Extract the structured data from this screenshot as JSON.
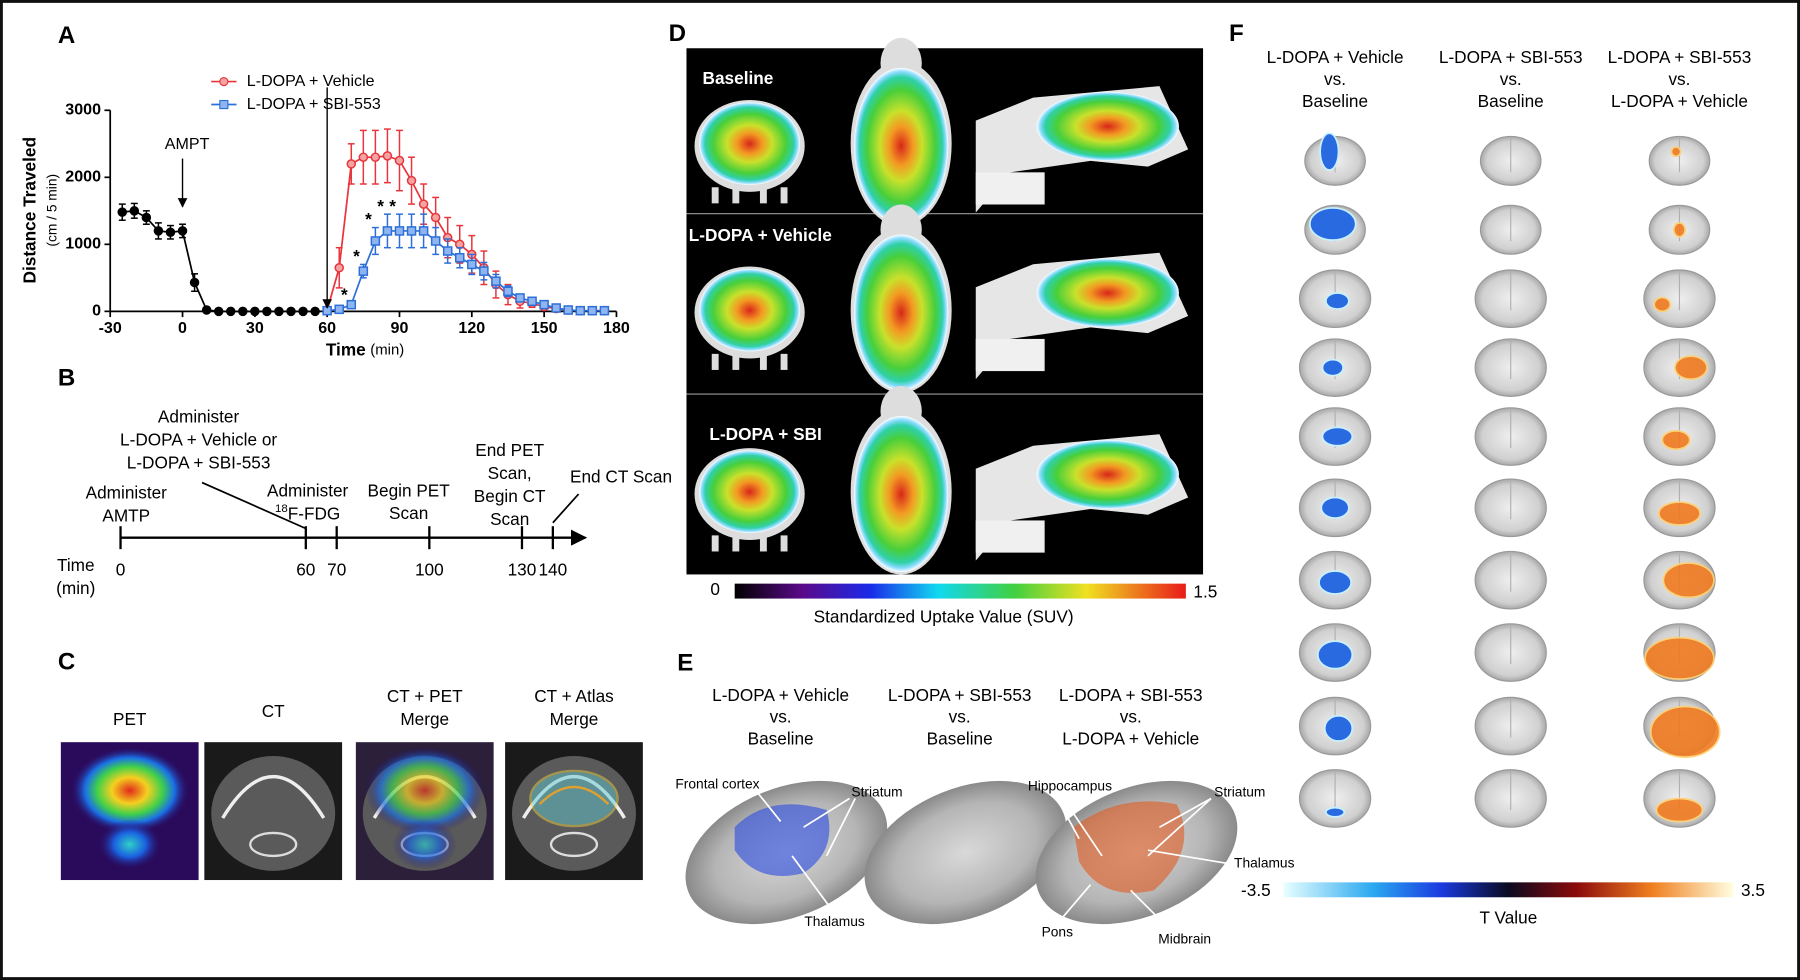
{
  "panel_labels": [
    "A",
    "B",
    "C",
    "D",
    "E",
    "F"
  ],
  "chart_data": {
    "type": "line",
    "y_label": "Distance Traveled",
    "y_label_unit": "(cm / 5 min)",
    "x_label": "Time",
    "x_label_unit": "(min)",
    "x": [
      -25,
      -20,
      -15,
      -10,
      -5,
      0,
      5,
      10,
      15,
      20,
      25,
      30,
      35,
      40,
      45,
      50,
      55,
      60,
      65,
      70,
      75,
      80,
      85,
      90,
      95,
      100,
      105,
      110,
      115,
      120,
      125,
      130,
      135,
      140,
      145,
      150,
      155,
      160,
      165,
      170,
      175
    ],
    "xlim": [
      -30,
      180
    ],
    "xticks": [
      -30,
      0,
      30,
      60,
      90,
      120,
      150,
      180
    ],
    "ylim": [
      0,
      3000
    ],
    "yticks": [
      0,
      1000,
      2000,
      3000
    ],
    "series": [
      {
        "color": "#000000",
        "marker": "circle",
        "values": [
          1480,
          1500,
          1400,
          1200,
          1180,
          1200,
          430,
          20,
          0,
          0,
          0,
          0,
          0,
          0,
          0,
          0,
          0,
          null,
          null,
          null,
          null,
          null,
          null,
          null,
          null,
          null,
          null,
          null,
          null,
          null,
          null,
          null,
          null,
          null,
          null,
          null,
          null,
          null,
          null,
          null,
          null
        ],
        "errors": [
          120,
          110,
          100,
          120,
          100,
          100,
          130,
          0,
          0,
          0,
          0,
          0,
          0,
          0,
          0,
          0,
          0,
          null,
          null,
          null,
          null,
          null,
          null,
          null,
          null,
          null,
          null,
          null,
          null,
          null,
          null,
          null,
          null,
          null,
          null,
          null,
          null,
          null,
          null,
          null,
          null
        ]
      },
      {
        "name": "L-DOPA + Vehicle",
        "color": "#e8353b",
        "marker": "circle",
        "values": [
          null,
          null,
          null,
          null,
          null,
          null,
          null,
          null,
          null,
          null,
          null,
          null,
          null,
          null,
          null,
          null,
          null,
          20,
          650,
          2200,
          2300,
          2300,
          2320,
          2250,
          1950,
          1600,
          1400,
          1100,
          1000,
          850,
          650,
          400,
          250,
          150,
          120,
          70,
          40,
          20,
          10,
          10,
          10
        ],
        "errors": [
          null,
          null,
          null,
          null,
          null,
          null,
          null,
          null,
          null,
          null,
          null,
          null,
          null,
          null,
          null,
          null,
          null,
          0,
          300,
          300,
          400,
          400,
          400,
          450,
          350,
          300,
          300,
          300,
          280,
          280,
          250,
          200,
          150,
          100,
          60,
          40,
          30,
          20,
          10,
          10,
          10
        ]
      },
      {
        "name": "L-DOPA + SBI-553",
        "color": "#2d6fd8",
        "marker": "square",
        "values": [
          null,
          null,
          null,
          null,
          null,
          null,
          null,
          null,
          null,
          null,
          null,
          null,
          null,
          null,
          null,
          null,
          null,
          10,
          30,
          100,
          600,
          1050,
          1200,
          1200,
          1200,
          1200,
          1050,
          900,
          800,
          700,
          600,
          450,
          300,
          200,
          150,
          100,
          50,
          20,
          10,
          10,
          10
        ],
        "errors": [
          null,
          null,
          null,
          null,
          null,
          null,
          null,
          null,
          null,
          null,
          null,
          null,
          null,
          null,
          null,
          null,
          null,
          0,
          0,
          30,
          100,
          200,
          250,
          250,
          250,
          250,
          200,
          180,
          150,
          150,
          130,
          100,
          80,
          50,
          30,
          20,
          15,
          10,
          5,
          5,
          5
        ]
      }
    ],
    "annotation": {
      "text": "AMPT"
    },
    "arrow_x": [
      0,
      60
    ],
    "significance": {
      "label": "*",
      "x": [
        70,
        75,
        80,
        85,
        90
      ]
    }
  },
  "timeline": {
    "axis_label": [
      "Time",
      "(min)"
    ],
    "events": [
      {
        "time": 0,
        "lines": [
          "Administer",
          "AMTP"
        ]
      },
      {
        "time": 60,
        "lines": [
          "Administer",
          "L-DOPA + Vehicle or",
          "L-DOPA + SBI-553"
        ]
      },
      {
        "time": 70,
        "lines": [
          "Administer",
          {
            "sup": "18",
            "text": "F-FDG"
          }
        ]
      },
      {
        "time": 100,
        "lines": [
          "Begin PET",
          "Scan"
        ]
      },
      {
        "time": 130,
        "lines": [
          "End PET",
          "Scan,",
          "Begin CT",
          "Scan"
        ]
      },
      {
        "time": 140,
        "lines": [
          "End CT Scan"
        ]
      }
    ]
  },
  "imaging_modalities": [
    [
      "PET"
    ],
    [
      "CT"
    ],
    [
      "CT + PET",
      "Merge"
    ],
    [
      "CT + Atlas",
      "Merge"
    ]
  ],
  "suv_maps": {
    "rows": [
      "Baseline",
      "L-DOPA + Vehicle",
      "L-DOPA + SBI"
    ],
    "colorbar": {
      "min": 0,
      "max": 1.5,
      "label": "Standardized Uptake Value (SUV)"
    }
  },
  "renderings": {
    "columns": [
      [
        "L-DOPA + Vehicle",
        "vs.",
        "Baseline"
      ],
      [
        "L-DOPA + SBI-553",
        "vs.",
        "Baseline"
      ],
      [
        "L-DOPA + SBI-553",
        "vs.",
        "L-DOPA + Vehicle"
      ]
    ],
    "regions": [
      "Frontal cortex",
      "Striatum",
      "Thalamus",
      "Hippocampus",
      "Striatum",
      "Thalamus",
      "Pons",
      "Midbrain"
    ]
  },
  "t_maps": {
    "columns": [
      [
        "L-DOPA + Vehicle",
        "vs.",
        "Baseline"
      ],
      [
        "L-DOPA + SBI-553",
        "vs.",
        "Baseline"
      ],
      [
        "L-DOPA + SBI-553",
        "vs.",
        "L-DOPA + Vehicle"
      ]
    ],
    "colorbar": {
      "min": -3.5,
      "max": 3.5,
      "label": "T Value"
    }
  }
}
